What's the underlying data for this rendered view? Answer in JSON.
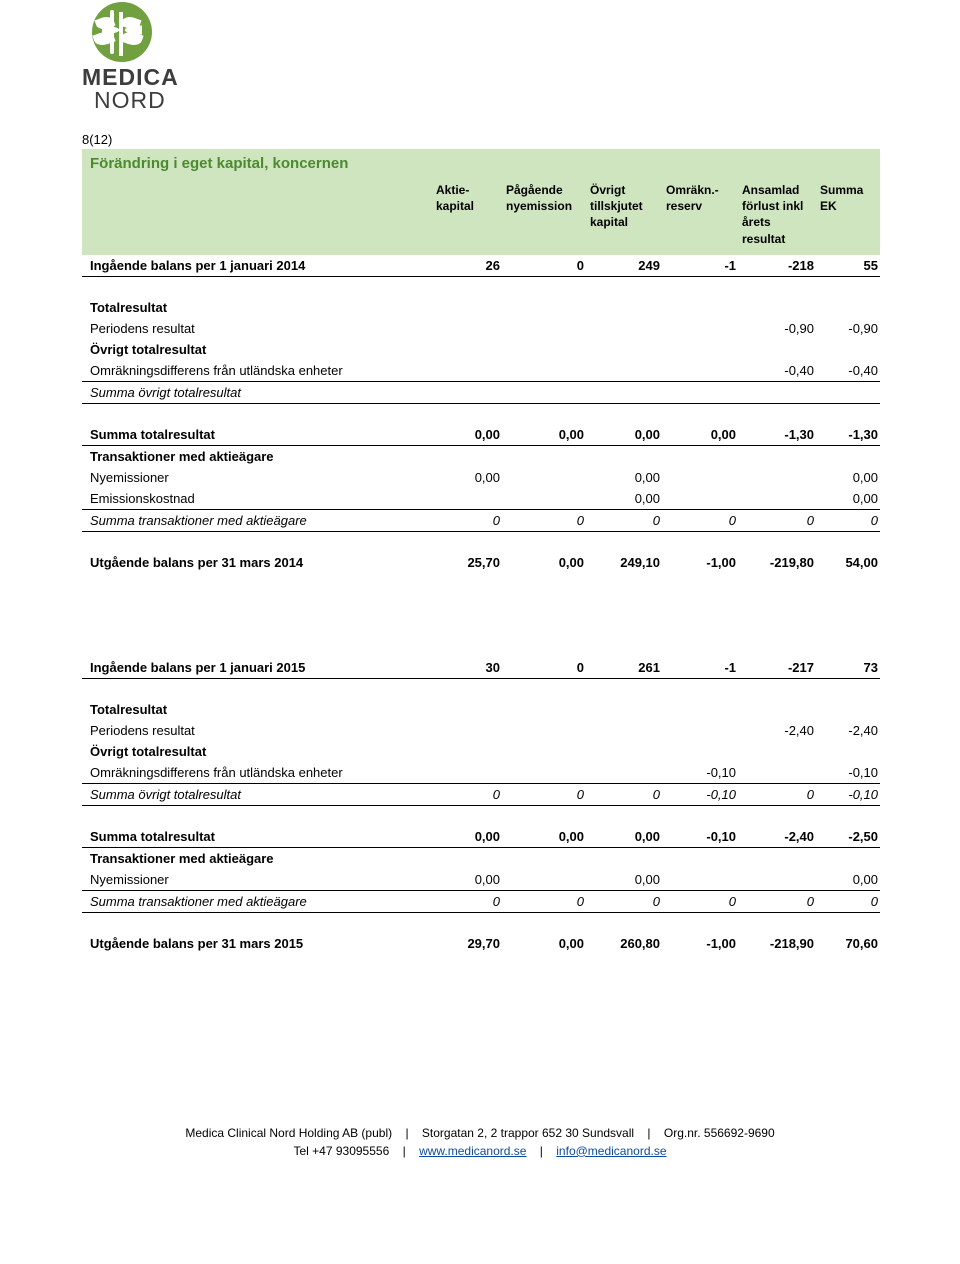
{
  "page_number": "8(12)",
  "title": "Förändring i eget kapital, koncernen",
  "columns": {
    "c1": "Aktie-\nkapital",
    "c2": "Pågående\nnyemission",
    "c3": "Övrigt\ntillskjutet\nkapital",
    "c4": "Omräkn.-\nreserv",
    "c5": "Ansamlad\nförlust inkl\nårets\nresultat",
    "c6": "Summa\nEK"
  },
  "rows": {
    "ing2014": {
      "label": "Ingående balans per 1 januari 2014",
      "v": [
        "26",
        "0",
        "249",
        "-1",
        "-218",
        "55"
      ]
    },
    "totres1_hdr": "Totalresultat",
    "perres1": {
      "label": "Periodens resultat",
      "v": [
        "",
        "",
        "",
        "",
        "-0,90",
        "-0,90"
      ]
    },
    "ovrtot1_hdr": "Övrigt totalresultat",
    "omrak1": {
      "label": "Omräkningsdifferens från utländska enheter",
      "v": [
        "",
        "",
        "",
        "",
        "-0,40",
        "-0,40"
      ]
    },
    "sumovr1": {
      "label": "Summa övrigt totalresultat",
      "v": [
        "",
        "",
        "",
        "",
        "",
        ""
      ]
    },
    "sumtot1": {
      "label": "Summa totalresultat",
      "v": [
        "0,00",
        "0,00",
        "0,00",
        "0,00",
        "-1,30",
        "-1,30"
      ]
    },
    "trans1_hdr": "Transaktioner med aktieägare",
    "nyem1": {
      "label": "Nyemissioner",
      "v": [
        "0,00",
        "",
        "0,00",
        "",
        "",
        "0,00"
      ]
    },
    "emkost1": {
      "label": "Emissionskostnad",
      "v": [
        "",
        "",
        "0,00",
        "",
        "",
        "0,00"
      ]
    },
    "sumtrans1": {
      "label": "Summa transaktioner med aktieägare",
      "v": [
        "0",
        "0",
        "0",
        "0",
        "0",
        "0"
      ]
    },
    "utg2014": {
      "label": "Utgående balans per 31 mars 2014",
      "v": [
        "25,70",
        "0,00",
        "249,10",
        "-1,00",
        "-219,80",
        "54,00"
      ]
    },
    "ing2015": {
      "label": "Ingående balans per 1 januari 2015",
      "v": [
        "30",
        "0",
        "261",
        "-1",
        "-217",
        "73"
      ]
    },
    "totres2_hdr": "Totalresultat",
    "perres2": {
      "label": "Periodens resultat",
      "v": [
        "",
        "",
        "",
        "",
        "-2,40",
        "-2,40"
      ]
    },
    "ovrtot2_hdr": "Övrigt totalresultat",
    "omrak2": {
      "label": "Omräkningsdifferens från utländska enheter",
      "v": [
        "",
        "",
        "",
        "-0,10",
        "",
        "-0,10"
      ]
    },
    "sumovr2": {
      "label": "Summa övrigt totalresultat",
      "v": [
        "0",
        "0",
        "0",
        "-0,10",
        "0",
        "-0,10"
      ]
    },
    "sumtot2": {
      "label": "Summa totalresultat",
      "v": [
        "0,00",
        "0,00",
        "0,00",
        "-0,10",
        "-2,40",
        "-2,50"
      ]
    },
    "trans2_hdr": "Transaktioner med aktieägare",
    "nyem2": {
      "label": "Nyemissioner",
      "v": [
        "0,00",
        "",
        "0,00",
        "",
        "",
        "0,00"
      ]
    },
    "sumtrans2": {
      "label": "Summa transaktioner med aktieägare",
      "v": [
        "0",
        "0",
        "0",
        "0",
        "0",
        "0"
      ]
    },
    "utg2015": {
      "label": "Utgående balans per 31 mars 2015",
      "v": [
        "29,70",
        "0,00",
        "260,80",
        "-1,00",
        "-218,90",
        "70,60"
      ]
    }
  },
  "footer": {
    "company": "Medica Clinical Nord Holding AB (publ)",
    "address": "Storgatan 2, 2 trappor 652 30 Sundsvall",
    "orgnr_label": "Org.nr. 556692-9690",
    "tel": "Tel +47 93095556",
    "url": "www.medicanord.se",
    "email": "info@medicanord.se"
  },
  "logo": {
    "name1": "MEDICA",
    "name2": "NORD"
  },
  "colors": {
    "band": "#cfe5c0",
    "title": "#4c8a2f",
    "link": "#0e4a9e"
  }
}
